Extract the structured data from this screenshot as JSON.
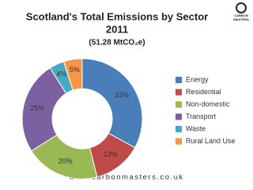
{
  "chart_data": {
    "type": "donut",
    "title": "Scotland's Total Emissions by Sector",
    "title_line2": "2011",
    "subtitle": "(51.28 MtCO₂e)",
    "categories": [
      "Energy",
      "Residential",
      "Non-domestic",
      "Transport",
      "Waste",
      "Rural Land Use"
    ],
    "values": [
      33,
      13,
      20,
      25,
      4,
      5
    ],
    "value_labels": [
      "33%",
      "13%",
      "20%",
      "25%",
      "4%",
      "5%"
    ],
    "colors": [
      "#4a7ebb",
      "#be4b48",
      "#98b954",
      "#7d60a0",
      "#46aac5",
      "#f79646"
    ],
    "legend": "right"
  },
  "logo": {
    "line1": "CARBON",
    "line2": "MASTERS"
  },
  "footer": "www.carbonmasters.co.uk"
}
